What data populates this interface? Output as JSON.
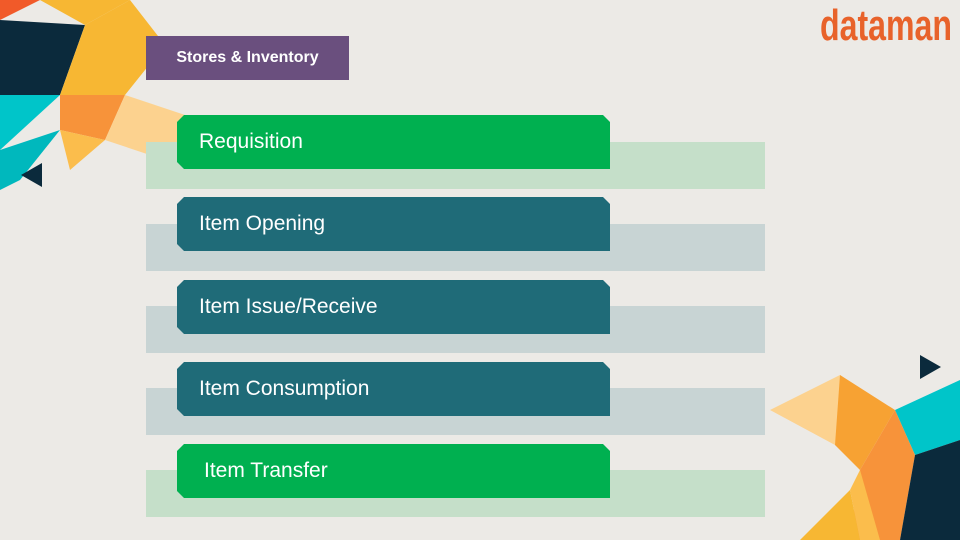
{
  "header": {
    "section_title": "Stores & Inventory"
  },
  "logo": {
    "text": "dataman"
  },
  "colors": {
    "green": "#00b050",
    "teal": "#1f6b78",
    "green_back": "#c5dfc9",
    "teal_back": "#c8d4d4",
    "header": "#6a4f7e",
    "logo_orange": "#e8622a"
  },
  "menu": {
    "items": [
      {
        "label": "Requisition",
        "style": "green"
      },
      {
        "label": "Item Opening",
        "style": "teal"
      },
      {
        "label": "Item Issue/Receive",
        "style": "teal"
      },
      {
        "label": "Item Consumption",
        "style": "teal"
      },
      {
        "label": "Item Transfer",
        "style": "green"
      }
    ]
  },
  "navigation": {
    "prev_icon": "triangle-left-icon",
    "next_icon": "triangle-right-icon"
  }
}
